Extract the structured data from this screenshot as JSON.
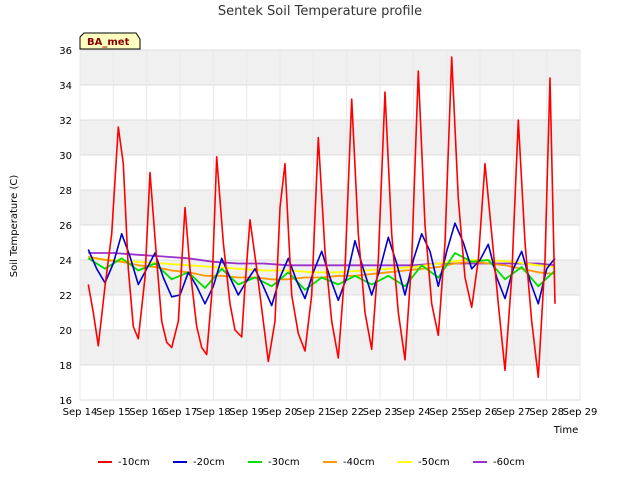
{
  "chart_data": {
    "type": "line",
    "title": "Sentek Soil Temperature profile",
    "xlabel": "Time",
    "ylabel": "Soil Temperature (C)",
    "badge": "BA_met",
    "xlim": [
      14,
      29
    ],
    "ylim": [
      16,
      36
    ],
    "yticks": [
      16,
      18,
      20,
      22,
      24,
      26,
      28,
      30,
      32,
      34,
      36
    ],
    "xticks": [
      {
        "value": 14,
        "label": "Sep 14"
      },
      {
        "value": 15,
        "label": "Sep 15"
      },
      {
        "value": 16,
        "label": "Sep 16"
      },
      {
        "value": 17,
        "label": "Sep 17"
      },
      {
        "value": 18,
        "label": "Sep 18"
      },
      {
        "value": 19,
        "label": "Sep 19"
      },
      {
        "value": 20,
        "label": "Sep 20"
      },
      {
        "value": 21,
        "label": "Sep 21"
      },
      {
        "value": 22,
        "label": "Sep 22"
      },
      {
        "value": 23,
        "label": "Sep 23"
      },
      {
        "value": 24,
        "label": "Sep 24"
      },
      {
        "value": 25,
        "label": "Sep 25"
      },
      {
        "value": 26,
        "label": "Sep 26"
      },
      {
        "value": 27,
        "label": "Sep 27"
      },
      {
        "value": 28,
        "label": "Sep 28"
      },
      {
        "value": 29,
        "label": "Sep 29"
      }
    ],
    "legend_position": "bottom",
    "series": [
      {
        "name": "-10cm",
        "color": "#ff0000",
        "x": [
          14.25,
          14.4,
          14.55,
          14.75,
          14.95,
          15.15,
          15.3,
          15.45,
          15.6,
          15.75,
          15.95,
          16.1,
          16.3,
          16.45,
          16.6,
          16.75,
          16.95,
          17.15,
          17.3,
          17.5,
          17.65,
          17.8,
          17.95,
          18.1,
          18.3,
          18.5,
          18.65,
          18.85,
          18.95,
          19.1,
          19.3,
          19.5,
          19.65,
          19.85,
          20.0,
          20.15,
          20.35,
          20.55,
          20.75,
          20.95,
          21.15,
          21.35,
          21.55,
          21.75,
          21.95,
          22.15,
          22.35,
          22.55,
          22.75,
          22.95,
          23.15,
          23.35,
          23.55,
          23.75,
          23.95,
          24.15,
          24.35,
          24.55,
          24.75,
          24.95,
          25.15,
          25.35,
          25.55,
          25.75,
          25.95,
          26.15,
          26.35,
          26.55,
          26.75,
          26.95,
          27.15,
          27.35,
          27.55,
          27.75,
          27.95,
          28.1,
          28.25
        ],
        "values": [
          22.6,
          21.0,
          19.1,
          22.5,
          25.5,
          31.6,
          29.5,
          23.5,
          20.2,
          19.5,
          23.0,
          29.0,
          24.0,
          20.5,
          19.3,
          19.0,
          20.5,
          27.0,
          23.5,
          20.2,
          19.0,
          18.6,
          22.0,
          29.9,
          25.0,
          21.5,
          20.0,
          19.6,
          22.5,
          26.3,
          23.5,
          20.5,
          18.2,
          20.5,
          27.0,
          29.5,
          22.0,
          19.8,
          18.8,
          22.0,
          31.0,
          24.5,
          20.5,
          18.4,
          23.5,
          33.2,
          25.5,
          21.0,
          18.9,
          24.0,
          33.6,
          25.5,
          21.0,
          18.3,
          24.0,
          34.8,
          26.0,
          21.5,
          19.7,
          25.0,
          35.6,
          27.5,
          23.0,
          21.3,
          24.0,
          29.5,
          25.5,
          21.5,
          17.7,
          23.0,
          32.0,
          25.0,
          20.5,
          17.3,
          24.0,
          34.4,
          21.5
        ]
      },
      {
        "name": "-20cm",
        "color": "#0000cc",
        "x": [
          14.25,
          14.5,
          14.75,
          15.0,
          15.25,
          15.5,
          15.75,
          16.0,
          16.25,
          16.5,
          16.75,
          17.0,
          17.25,
          17.5,
          17.75,
          18.0,
          18.25,
          18.5,
          18.75,
          19.0,
          19.25,
          19.5,
          19.75,
          20.0,
          20.25,
          20.5,
          20.75,
          21.0,
          21.25,
          21.5,
          21.75,
          22.0,
          22.25,
          22.5,
          22.75,
          23.0,
          23.25,
          23.5,
          23.75,
          24.0,
          24.25,
          24.5,
          24.75,
          25.0,
          25.25,
          25.5,
          25.75,
          26.0,
          26.25,
          26.5,
          26.75,
          27.0,
          27.25,
          27.5,
          27.75,
          28.0,
          28.25
        ],
        "values": [
          24.6,
          23.5,
          22.7,
          23.8,
          25.5,
          24.2,
          22.6,
          23.5,
          24.4,
          23.0,
          21.9,
          22.0,
          23.3,
          22.5,
          21.5,
          22.5,
          24.1,
          23.0,
          22.0,
          22.8,
          23.5,
          22.5,
          21.4,
          23.0,
          24.1,
          22.8,
          21.8,
          23.3,
          24.5,
          23.0,
          21.7,
          23.0,
          25.1,
          23.5,
          22.0,
          23.5,
          25.3,
          23.8,
          22.0,
          24.0,
          25.5,
          24.5,
          22.5,
          24.5,
          26.1,
          25.0,
          23.5,
          24.0,
          24.9,
          23.0,
          21.8,
          23.5,
          24.5,
          22.8,
          21.5,
          23.5,
          24.1
        ]
      },
      {
        "name": "-30cm",
        "color": "#00dd00",
        "x": [
          14.25,
          14.75,
          15.25,
          15.75,
          16.25,
          16.75,
          17.25,
          17.75,
          18.25,
          18.75,
          19.25,
          19.75,
          20.25,
          20.75,
          21.25,
          21.75,
          22.25,
          22.75,
          23.25,
          23.75,
          24.25,
          24.75,
          25.25,
          25.75,
          26.25,
          26.75,
          27.25,
          27.75,
          28.25
        ],
        "values": [
          24.1,
          23.5,
          24.1,
          23.4,
          23.8,
          22.9,
          23.3,
          22.4,
          23.5,
          22.6,
          23.0,
          22.5,
          23.3,
          22.3,
          23.0,
          22.6,
          23.1,
          22.6,
          23.1,
          22.5,
          23.7,
          23.0,
          24.4,
          23.9,
          24.0,
          22.9,
          23.6,
          22.5,
          23.4
        ]
      },
      {
        "name": "-40cm",
        "color": "#ff9900",
        "x": [
          14.25,
          14.75,
          15.25,
          15.75,
          16.25,
          16.75,
          17.25,
          17.75,
          18.25,
          18.75,
          19.25,
          19.75,
          20.25,
          20.75,
          21.25,
          21.75,
          22.25,
          22.75,
          23.25,
          23.75,
          24.25,
          24.75,
          25.25,
          25.75,
          26.25,
          26.75,
          27.25,
          27.75,
          28.25
        ],
        "values": [
          24.2,
          24.0,
          23.9,
          23.7,
          23.6,
          23.4,
          23.3,
          23.1,
          23.1,
          23.0,
          23.0,
          22.9,
          22.9,
          23.0,
          23.0,
          23.1,
          23.1,
          23.2,
          23.3,
          23.4,
          23.5,
          23.6,
          23.8,
          23.9,
          23.8,
          23.7,
          23.5,
          23.3,
          23.2
        ]
      },
      {
        "name": "-50cm",
        "color": "#ffff00",
        "x": [
          14.25,
          15.0,
          15.75,
          16.5,
          17.25,
          18.0,
          18.75,
          19.5,
          20.25,
          21.0,
          21.75,
          22.5,
          23.25,
          24.0,
          24.75,
          25.5,
          26.25,
          27.0,
          27.75,
          28.25
        ],
        "values": [
          24.1,
          24.0,
          23.9,
          23.8,
          23.7,
          23.6,
          23.5,
          23.4,
          23.4,
          23.3,
          23.3,
          23.4,
          23.5,
          23.6,
          23.8,
          24.0,
          24.0,
          23.9,
          23.7,
          23.6
        ]
      },
      {
        "name": "-60cm",
        "color": "#9932cc",
        "x": [
          14.25,
          15.0,
          15.75,
          16.5,
          17.25,
          18.0,
          18.75,
          19.5,
          20.25,
          21.0,
          21.75,
          22.5,
          23.25,
          24.0,
          24.75,
          25.5,
          26.25,
          27.0,
          27.75,
          28.25
        ],
        "values": [
          24.4,
          24.4,
          24.3,
          24.2,
          24.1,
          23.9,
          23.8,
          23.8,
          23.7,
          23.7,
          23.7,
          23.7,
          23.7,
          23.7,
          23.8,
          23.8,
          23.8,
          23.8,
          23.8,
          23.7
        ]
      }
    ]
  }
}
